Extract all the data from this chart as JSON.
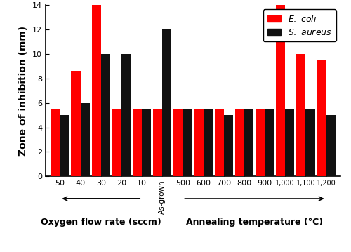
{
  "groups": [
    {
      "label": "50",
      "ecoli": 5.5,
      "saureus": 5.0
    },
    {
      "label": "40",
      "ecoli": 8.6,
      "saureus": 6.0
    },
    {
      "label": "30",
      "ecoli": 14.0,
      "saureus": 10.0
    },
    {
      "label": "20",
      "ecoli": 5.5,
      "saureus": 10.0
    },
    {
      "label": "10",
      "ecoli": 5.5,
      "saureus": 5.5
    },
    {
      "label": "As-grown",
      "ecoli": 5.5,
      "saureus": 12.0
    },
    {
      "label": "500",
      "ecoli": 5.5,
      "saureus": 5.5
    },
    {
      "label": "600",
      "ecoli": 5.5,
      "saureus": 5.5
    },
    {
      "label": "700",
      "ecoli": 5.5,
      "saureus": 5.0
    },
    {
      "label": "800",
      "ecoli": 5.5,
      "saureus": 5.5
    },
    {
      "label": "900",
      "ecoli": 5.5,
      "saureus": 5.5
    },
    {
      "label": "1,000",
      "ecoli": 14.0,
      "saureus": 5.5
    },
    {
      "label": "1,100",
      "ecoli": 10.0,
      "saureus": 5.5
    },
    {
      "label": "1,200",
      "ecoli": 9.5,
      "saureus": 5.0
    }
  ],
  "ecoli_color": "#FF0000",
  "saureus_color": "#111111",
  "ylabel": "Zone of inhibition (mm)",
  "ylim": [
    0,
    14
  ],
  "yticks": [
    0,
    2,
    4,
    6,
    8,
    10,
    12,
    14
  ],
  "left_xlabel": "Oxygen flow rate (sccm)",
  "right_xlabel": "Annealing temperature (°C)",
  "bar_width": 0.45,
  "bgcolor": "#FFFFFF",
  "left_group_indices": [
    0,
    1,
    2,
    3,
    4
  ],
  "separator_index": 5,
  "right_group_indices": [
    6,
    7,
    8,
    9,
    10,
    11,
    12,
    13
  ]
}
